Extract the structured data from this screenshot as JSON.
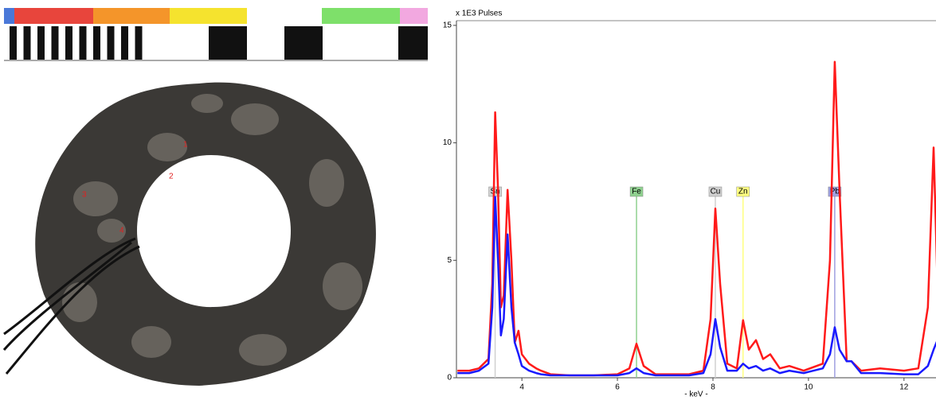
{
  "photo": {
    "labels": [
      "1",
      "2",
      "3",
      "4"
    ]
  },
  "chart_data": {
    "type": "line",
    "y_axis_label": "x 1E3 Pulses",
    "x_axis_label": "- keV -",
    "xlim": [
      2.63,
      12.67
    ],
    "xticks": [
      4,
      6,
      8,
      10,
      12
    ],
    "ylim": [
      0,
      15.2
    ],
    "yticks": [
      0,
      5,
      10,
      15
    ],
    "x": [
      2.65,
      2.9,
      3.1,
      3.3,
      3.38,
      3.44,
      3.5,
      3.56,
      3.62,
      3.7,
      3.78,
      3.85,
      3.93,
      4.0,
      4.15,
      4.3,
      4.4,
      4.6,
      5.0,
      5.5,
      6.0,
      6.25,
      6.4,
      6.55,
      6.8,
      7.1,
      7.5,
      7.8,
      7.95,
      8.05,
      8.15,
      8.3,
      8.5,
      8.63,
      8.75,
      8.9,
      9.05,
      9.2,
      9.4,
      9.6,
      9.9,
      10.3,
      10.45,
      10.55,
      10.65,
      10.8,
      10.9,
      11.1,
      11.5,
      12.0,
      12.3,
      12.5,
      12.62,
      12.7
    ],
    "series": [
      {
        "color": "#ff1a1a",
        "values": [
          0.3,
          0.3,
          0.4,
          0.8,
          4,
          11.3,
          8,
          3,
          3.5,
          8,
          5,
          1.5,
          2,
          1,
          0.6,
          0.4,
          0.3,
          0.15,
          0.1,
          0.1,
          0.15,
          0.4,
          1.45,
          0.5,
          0.15,
          0.15,
          0.15,
          0.3,
          2.5,
          7.2,
          4,
          0.6,
          0.4,
          2.45,
          1.2,
          1.6,
          0.8,
          1.0,
          0.4,
          0.5,
          0.3,
          0.6,
          5,
          13.45,
          8,
          0.7,
          0.7,
          0.3,
          0.4,
          0.3,
          0.4,
          3,
          9.8,
          4
        ]
      },
      {
        "color": "#1a1aff",
        "values": [
          0.2,
          0.2,
          0.3,
          0.6,
          3,
          7.7,
          5,
          1.8,
          2.5,
          6.1,
          3,
          1.5,
          1,
          0.5,
          0.3,
          0.2,
          0.15,
          0.1,
          0.1,
          0.1,
          0.1,
          0.2,
          0.4,
          0.2,
          0.1,
          0.1,
          0.1,
          0.2,
          1,
          2.5,
          1.3,
          0.3,
          0.3,
          0.6,
          0.4,
          0.5,
          0.3,
          0.4,
          0.2,
          0.3,
          0.2,
          0.4,
          1,
          2.15,
          1.2,
          0.7,
          0.7,
          0.2,
          0.2,
          0.15,
          0.15,
          0.5,
          1.2,
          1.6
        ]
      }
    ],
    "annotations": [
      {
        "label": "Sn",
        "x": 3.44,
        "color": "#d0d0d0"
      },
      {
        "label": "Fe",
        "x": 6.4,
        "color": "#8fd18f"
      },
      {
        "label": "Cu",
        "x": 8.05,
        "color": "#d0d0d0"
      },
      {
        "label": "Zn",
        "x": 8.63,
        "color": "#ffff80"
      },
      {
        "label": "Pb",
        "x": 10.55,
        "color": "#a0a0e0"
      }
    ]
  }
}
